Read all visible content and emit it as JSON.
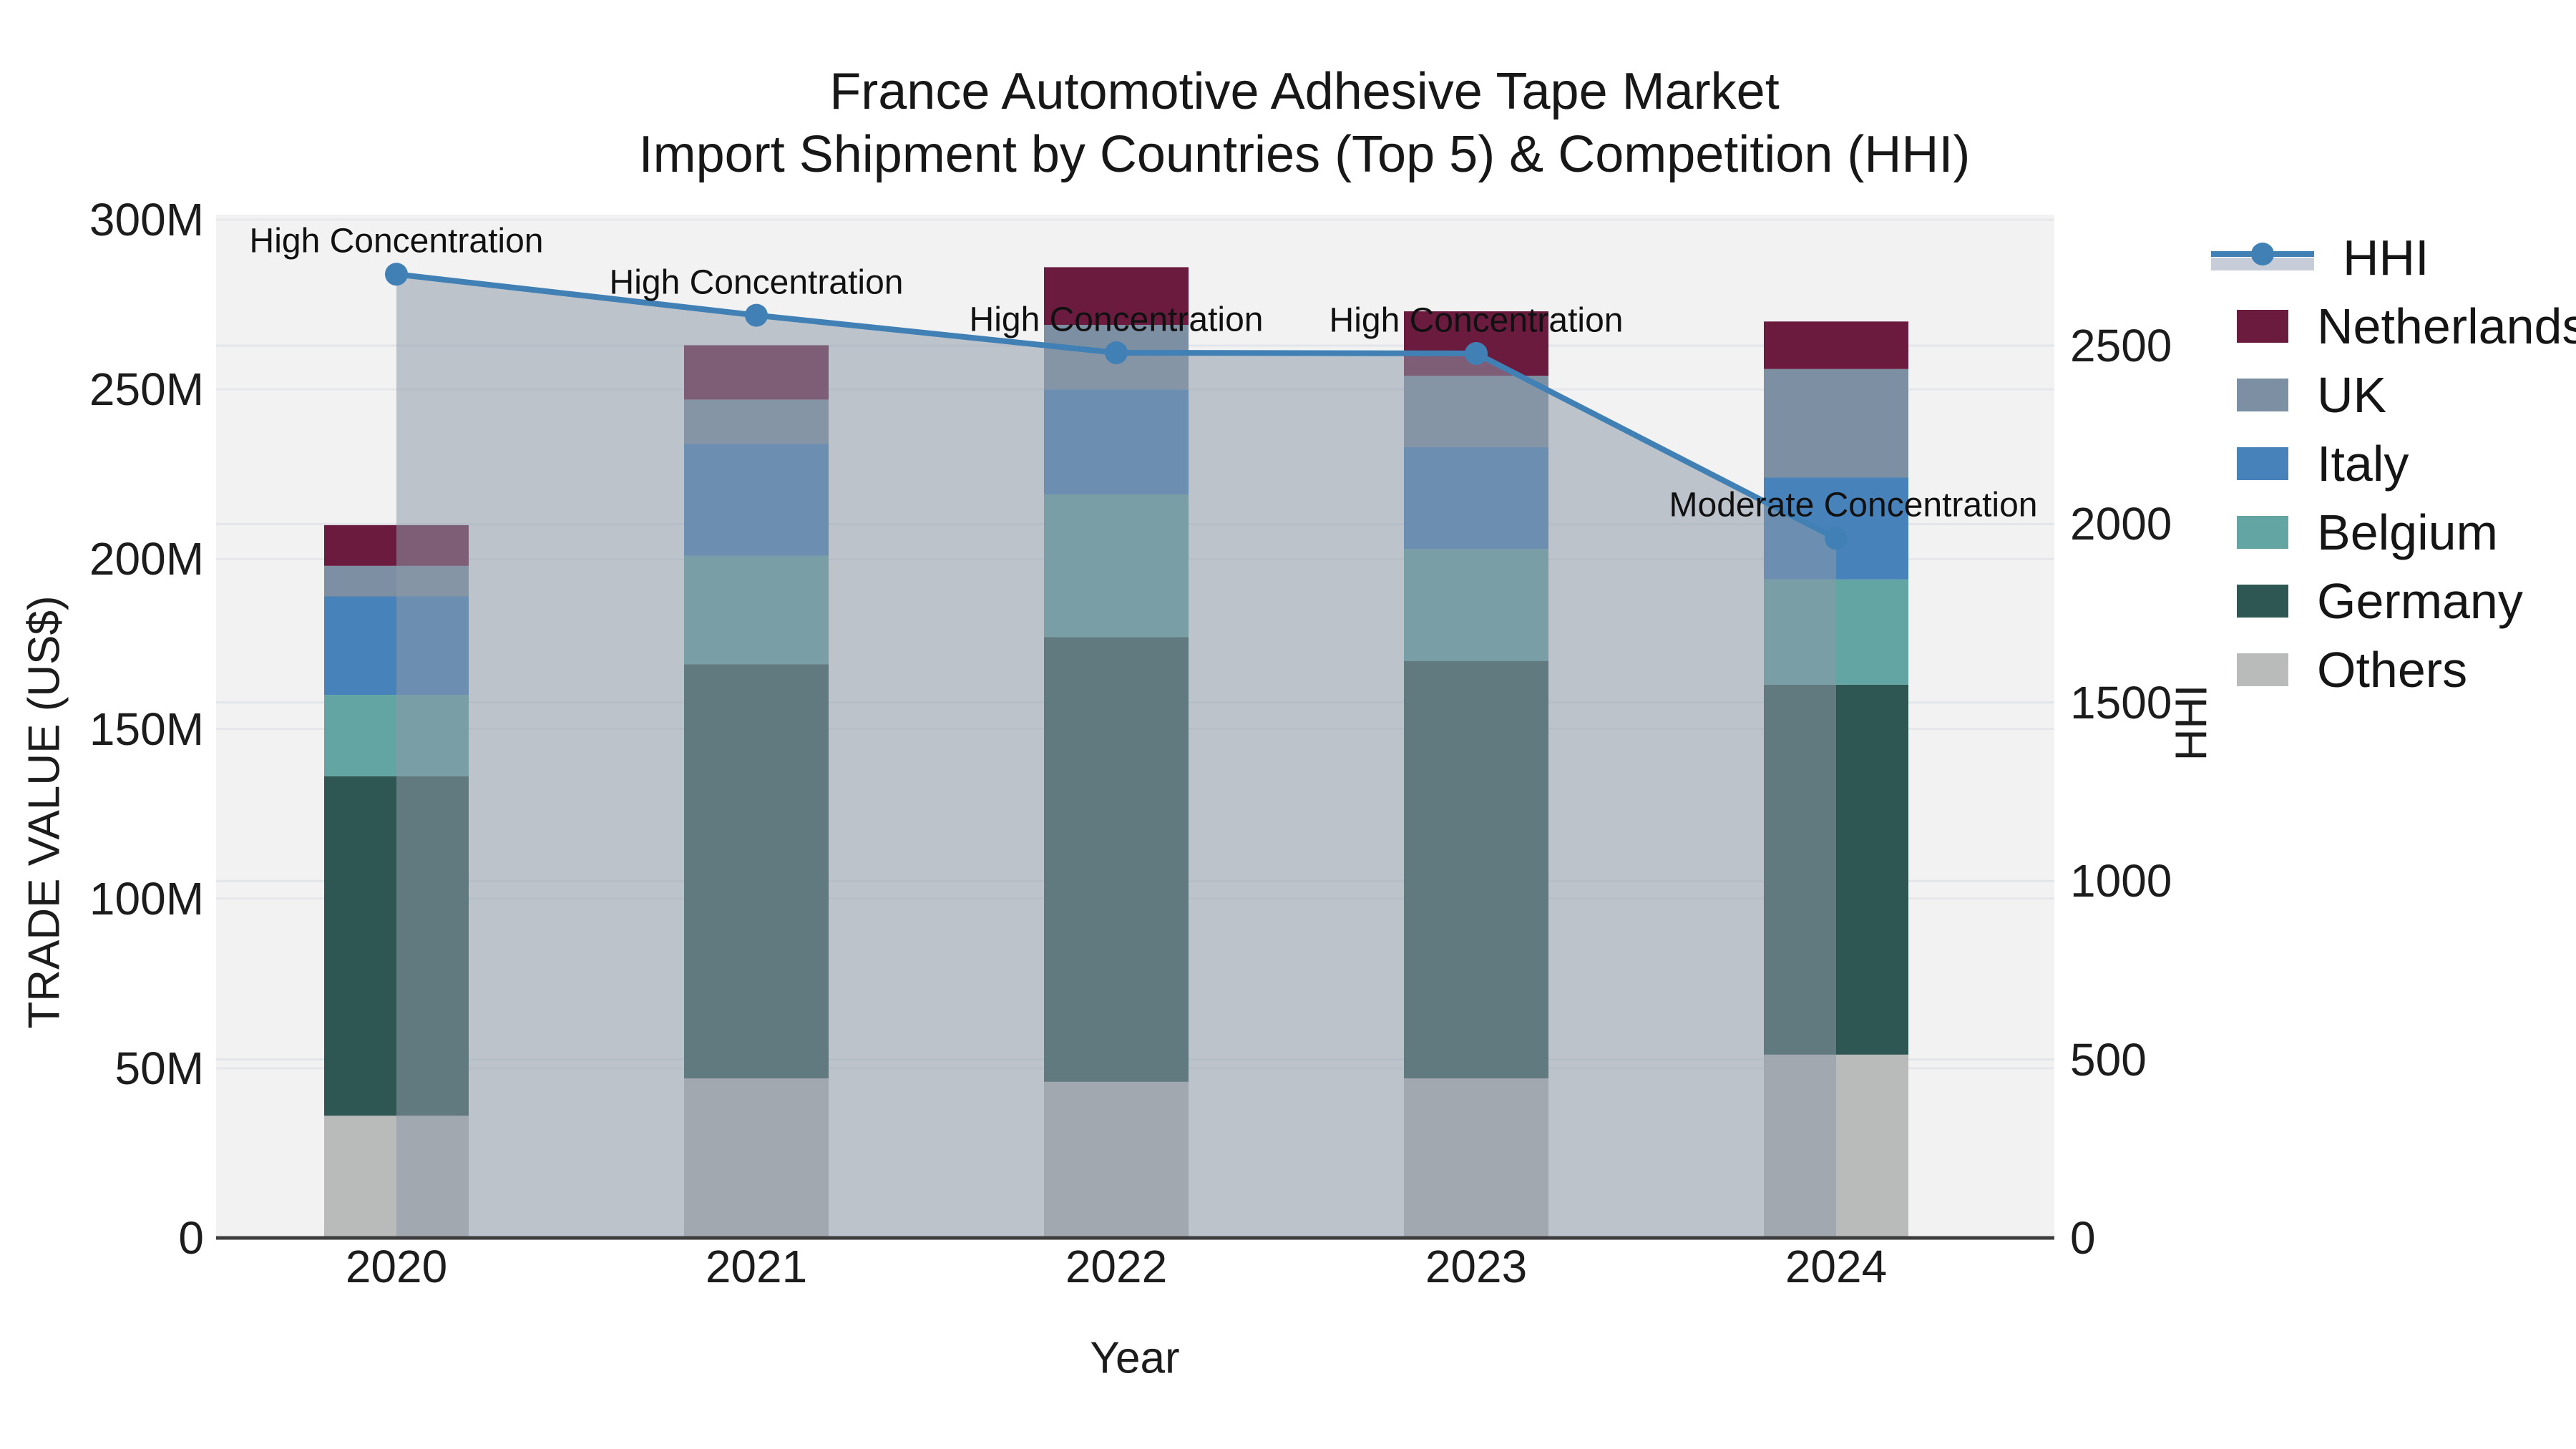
{
  "title": {
    "line1": "France Automotive Adhesive Tape Market",
    "line2": "Import Shipment by Countries (Top 5) & Competition (HHI)"
  },
  "axes": {
    "x_title": "Year",
    "y_left_title": "TRADE VALUE (US$)",
    "y_right_title": "HHI",
    "x_ticks": [
      "2020",
      "2021",
      "2022",
      "2023",
      "2024"
    ],
    "y_left_tick_labels": [
      "0",
      "50M",
      "100M",
      "150M",
      "200M",
      "250M",
      "300M"
    ],
    "y_right_tick_labels": [
      "0",
      "500",
      "1000",
      "1500",
      "2000",
      "2500"
    ]
  },
  "legend": {
    "items": [
      {
        "label": "HHI",
        "type": "line",
        "color": "#4180B5",
        "band": "#C6CDD8"
      },
      {
        "label": "Netherlands",
        "type": "swatch",
        "color": "#6B1C3E"
      },
      {
        "label": "UK",
        "type": "swatch",
        "color": "#7D90A3"
      },
      {
        "label": "Italy",
        "type": "swatch",
        "color": "#4783BA"
      },
      {
        "label": "Belgium",
        "type": "swatch",
        "color": "#62A5A2"
      },
      {
        "label": "Germany",
        "type": "swatch",
        "color": "#2E5753"
      },
      {
        "label": "Others",
        "type": "swatch",
        "color": "#B9BABA"
      }
    ]
  },
  "colors": {
    "plot_bg": "#F2F2F3",
    "grid_left": "#E6E7EA",
    "grid_right": "#E2E5E9",
    "axis_line": "#3D3D3D",
    "hhi_line": "#4180B5",
    "hhi_area_fill": "rgba(141,153,168,0.53)"
  },
  "chart_data": {
    "type": "bar",
    "stacked": true,
    "categories": [
      "2020",
      "2021",
      "2022",
      "2023",
      "2024"
    ],
    "value_unit": "million US$ (trade value)",
    "series": [
      {
        "name": "Others",
        "color": "#B9BABA",
        "values": [
          36,
          47,
          46,
          47,
          54
        ]
      },
      {
        "name": "Germany",
        "color": "#2E5753",
        "values": [
          100,
          122,
          131,
          123,
          109
        ]
      },
      {
        "name": "Belgium",
        "color": "#62A5A2",
        "values": [
          24,
          32,
          42,
          33,
          31
        ]
      },
      {
        "name": "Italy",
        "color": "#4783BA",
        "values": [
          29,
          33,
          31,
          30,
          30
        ]
      },
      {
        "name": "UK",
        "color": "#7D90A3",
        "values": [
          9,
          13,
          19,
          21,
          32
        ]
      },
      {
        "name": "Netherlands",
        "color": "#6B1C3E",
        "values": [
          12,
          16,
          17,
          19,
          14
        ]
      }
    ],
    "line_series": {
      "name": "HHI",
      "axis": "right",
      "values": [
        2700,
        2585,
        2480,
        2478,
        1960
      ],
      "color": "#4180B5",
      "area_fill": "rgba(141,153,168,0.53)",
      "marker_radius": 16
    },
    "annotations": [
      {
        "category": "2020",
        "text": "High Concentration"
      },
      {
        "category": "2021",
        "text": "High Concentration"
      },
      {
        "category": "2022",
        "text": "High Concentration"
      },
      {
        "category": "2023",
        "text": "High Concentration"
      },
      {
        "category": "2024",
        "text": "Moderate Concentration"
      }
    ],
    "title": "France Automotive Adhesive Tape Market — Import Shipment by Countries (Top 5) & Competition (HHI)",
    "xlabel": "Year",
    "ylabel_left": "TRADE VALUE (US$)",
    "ylabel_right": "HHI",
    "ylim_left": [
      0,
      300
    ],
    "ylim_right": [
      0,
      2860
    ],
    "yticks_left": [
      0,
      50,
      100,
      150,
      200,
      250,
      300
    ],
    "yticks_right": [
      0,
      500,
      1000,
      1500,
      2000,
      2500
    ],
    "grid": true,
    "legend_position": "right"
  }
}
